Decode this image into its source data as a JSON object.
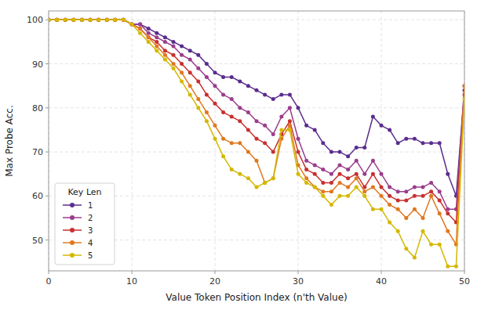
{
  "chart_data": {
    "type": "line",
    "xlabel": "Value Token Position Index (n'th Value)",
    "ylabel": "Max Probe Acc.",
    "legend_title": "Key Len",
    "x": [
      0,
      1,
      2,
      3,
      4,
      5,
      6,
      7,
      8,
      9,
      10,
      11,
      12,
      13,
      14,
      15,
      16,
      17,
      18,
      19,
      20,
      21,
      22,
      23,
      24,
      25,
      26,
      27,
      28,
      29,
      30,
      31,
      32,
      33,
      34,
      35,
      36,
      37,
      38,
      39,
      40,
      41,
      42,
      43,
      44,
      45,
      46,
      47,
      48,
      49,
      50
    ],
    "xlim": [
      0,
      50
    ],
    "ylim": [
      43,
      102
    ],
    "xticks": [
      0,
      10,
      20,
      30,
      40,
      50
    ],
    "yticks": [
      50,
      60,
      70,
      80,
      90,
      100
    ],
    "grid": true,
    "legend": "lower left",
    "marker": "circle",
    "series": [
      {
        "name": "1",
        "color": "#5b2d8e",
        "values": [
          100,
          100,
          100,
          100,
          100,
          100,
          100,
          100,
          100,
          100,
          99,
          99,
          98,
          97,
          96,
          95,
          94,
          93,
          92,
          90,
          88,
          87,
          87,
          86,
          85,
          84,
          83,
          82,
          83,
          83,
          80,
          76,
          75,
          72,
          70,
          70,
          69,
          71,
          71,
          78,
          76,
          75,
          72,
          73,
          73,
          72,
          72,
          72,
          65,
          60,
          84
        ]
      },
      {
        "name": "2",
        "color": "#9b3d8c",
        "values": [
          100,
          100,
          100,
          100,
          100,
          100,
          100,
          100,
          100,
          100,
          99,
          99,
          97,
          96,
          95,
          94,
          92,
          91,
          89,
          87,
          85,
          83,
          82,
          80,
          79,
          77,
          76,
          74,
          78,
          80,
          73,
          68,
          67,
          66,
          65,
          67,
          66,
          68,
          65,
          68,
          65,
          62,
          61,
          61,
          62,
          62,
          63,
          61,
          57,
          57,
          85
        ]
      },
      {
        "name": "3",
        "color": "#c93030",
        "values": [
          100,
          100,
          100,
          100,
          100,
          100,
          100,
          100,
          100,
          100,
          99,
          98,
          96,
          95,
          93,
          92,
          90,
          88,
          86,
          83,
          81,
          79,
          78,
          77,
          75,
          73,
          72,
          70,
          74,
          77,
          70,
          66,
          65,
          63,
          63,
          65,
          64,
          65,
          62,
          65,
          62,
          60,
          59,
          59,
          60,
          60,
          61,
          59,
          56,
          54,
          83
        ]
      },
      {
        "name": "4",
        "color": "#e07820",
        "values": [
          100,
          100,
          100,
          100,
          100,
          100,
          100,
          100,
          100,
          100,
          99,
          98,
          96,
          94,
          92,
          90,
          88,
          85,
          82,
          79,
          76,
          73,
          72,
          72,
          70,
          68,
          63,
          64,
          73,
          76,
          67,
          64,
          62,
          61,
          61,
          63,
          62,
          64,
          61,
          62,
          60,
          58,
          57,
          55,
          57,
          55,
          60,
          56,
          52,
          49,
          85
        ]
      },
      {
        "name": "5",
        "color": "#d4b800",
        "values": [
          100,
          100,
          100,
          100,
          100,
          100,
          100,
          100,
          100,
          100,
          99,
          97,
          95,
          93,
          91,
          89,
          86,
          83,
          80,
          77,
          73,
          69,
          66,
          65,
          64,
          62,
          63,
          64,
          75,
          75,
          65,
          63,
          62,
          60,
          58,
          60,
          60,
          62,
          60,
          57,
          57,
          54,
          52,
          48,
          46,
          52,
          49,
          49,
          44,
          44,
          82
        ]
      }
    ]
  }
}
